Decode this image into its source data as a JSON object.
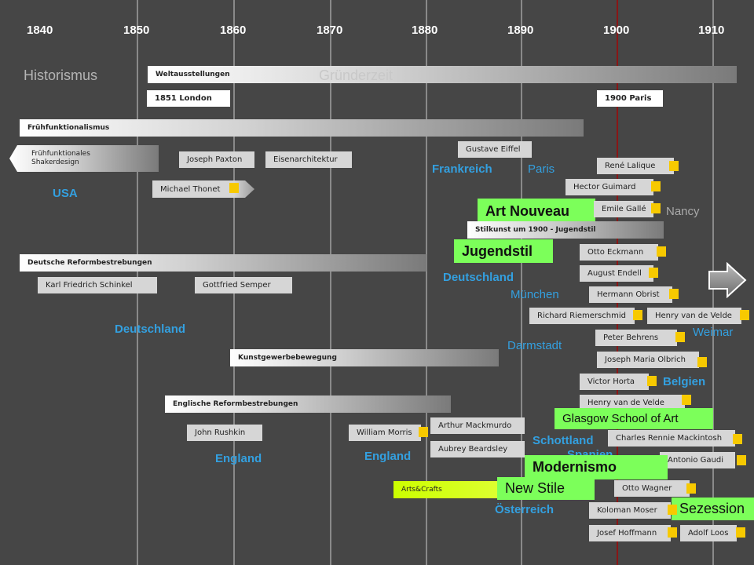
{
  "years": [
    "1840",
    "1850",
    "1860",
    "1870",
    "1880",
    "1890",
    "1900",
    "1910"
  ],
  "periods": {
    "historismus": "Historismus",
    "gruenderzeit": "Gründerzeit"
  },
  "bars": {
    "weltausstellungen": "Weltausstellungen",
    "fruehfunktionalismus": "Frühfunktionalismus",
    "stilkunst": "Stilkunst um 1900 - Jugendstil",
    "deutsche_reform": "Deutsche Reformbestrebungen",
    "kunstgewerbe": "Kunstgewerbebewegung",
    "englische_reform": "Englische Reformbestrebungen",
    "arts_crafts": "Arts&Crafts"
  },
  "boxes": {
    "london": "1851 London",
    "paris1900": "1900 Paris",
    "shaker": "Frühfunktionales Shakerdesign",
    "paxton": "Joseph Paxton",
    "eisen": "Eisenarchitektur",
    "eiffel": "Gustave Eiffel",
    "thonet": "Michael Thonet",
    "lalique": "René Lalique",
    "guimard": "Hector Guimard",
    "galle": "Emile Gallé",
    "schinkel": "Karl Friedrich Schinkel",
    "semper": "Gottfried Semper",
    "eckmann": "Otto Eckmann",
    "endell": "August Endell",
    "obrist": "Hermann Obrist",
    "riemerschmid": "Richard Riemerschmid",
    "velde1": "Henry van de Velde",
    "behrens": "Peter Behrens",
    "olbrich": "Joseph Maria Olbrich",
    "horta": "Victor Horta",
    "velde2": "Henry van de Velde",
    "rushkin": "John Rushkin",
    "morris": "William Morris",
    "mackmurdo": "Arthur Mackmurdo",
    "beardsley": "Aubrey Beardsley",
    "mackintosh": "Charles Rennie Mackintosh",
    "gaudi": "Antonio Gaudi",
    "wagner": "Otto Wagner",
    "moser": "Koloman Moser",
    "hoffmann": "Josef Hoffmann",
    "loos": "Adolf Loos"
  },
  "places": {
    "usa": "USA",
    "frankreich": "Frankreich",
    "paris": "Paris",
    "nancy": "Nancy",
    "deutschland_r": "Deutschland",
    "muenchen": "München",
    "weimar": "Weimar",
    "darmstadt": "Darmstadt",
    "deutschland_l": "Deutschland",
    "belgien": "Belgien",
    "schottland": "Schottland",
    "spanien": "Spanien",
    "england1": "England",
    "england2": "England",
    "oesterreich": "Österreich"
  },
  "styles": {
    "art_nouveau": "Art Nouveau",
    "jugendstil": "Jugendstil",
    "glasgow": "Glasgow School of Art",
    "modernismo": "Modernismo",
    "new_stile": "New Stile",
    "sezession": "Sezession"
  },
  "colors": {
    "background": "#464646",
    "accent_blue": "#33a0e0",
    "marker_yellow": "#f7c900",
    "style_green": "#7cff5a",
    "arts_crafts_lime": "#ccff00",
    "line_1900": "#8a1616"
  },
  "icons": {
    "next_arrow": "arrow-right-icon"
  }
}
